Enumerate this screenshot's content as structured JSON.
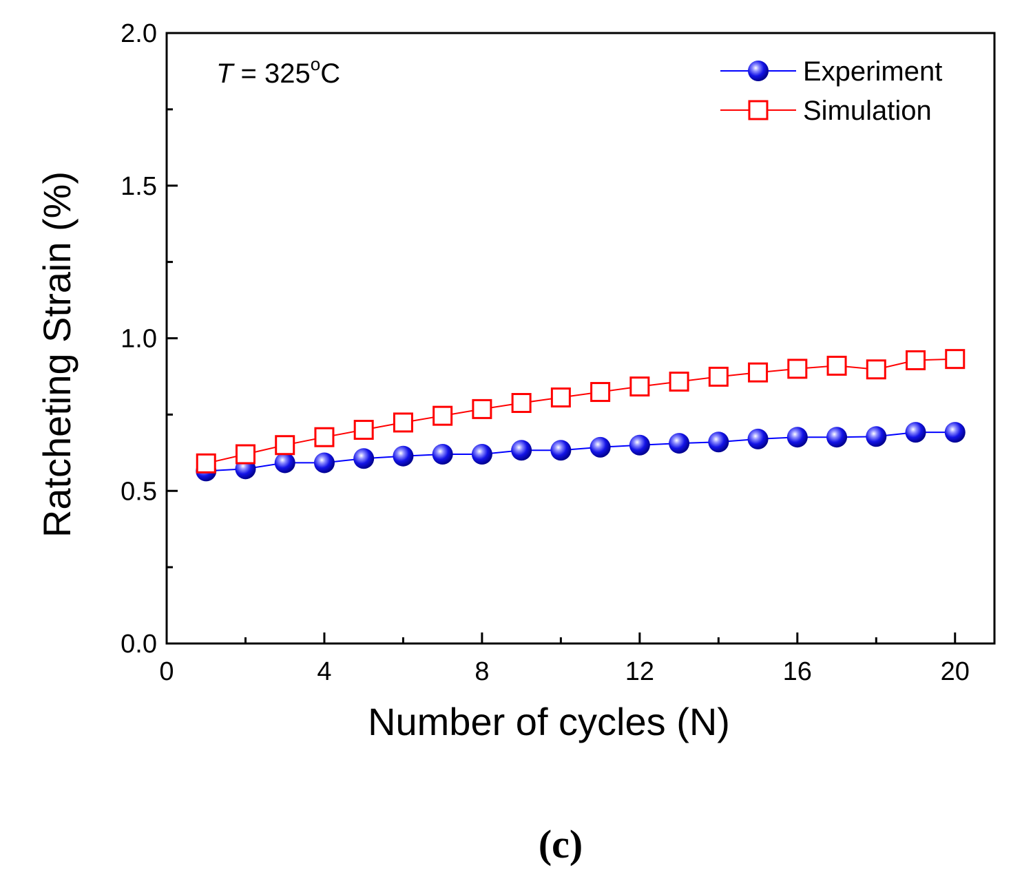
{
  "chart_data": {
    "type": "line",
    "title": "",
    "xlabel": "Number of cycles (N)",
    "ylabel": "Ratcheting Strain (%)",
    "xlim": [
      0,
      21
    ],
    "ylim": [
      0.0,
      2.0
    ],
    "x_ticks": [
      0,
      4,
      8,
      12,
      16,
      20
    ],
    "y_ticks": [
      "0.0",
      "0.5",
      "1.0",
      "1.5",
      "2.0"
    ],
    "grid": false,
    "legend_position": "top-right",
    "x": [
      1,
      2,
      3,
      4,
      5,
      6,
      7,
      8,
      9,
      10,
      11,
      12,
      13,
      14,
      15,
      16,
      17,
      18,
      19,
      20
    ],
    "series": [
      {
        "name": "Experiment",
        "color": "#0000ff",
        "marker": "sphere",
        "values": [
          0.565,
          0.572,
          0.592,
          0.592,
          0.606,
          0.614,
          0.62,
          0.62,
          0.633,
          0.633,
          0.643,
          0.65,
          0.656,
          0.66,
          0.67,
          0.676,
          0.676,
          0.678,
          0.692,
          0.692
        ]
      },
      {
        "name": "Simulation",
        "color": "#ff0000",
        "marker": "open-square",
        "values": [
          0.59,
          0.62,
          0.65,
          0.676,
          0.7,
          0.724,
          0.746,
          0.768,
          0.788,
          0.806,
          0.824,
          0.842,
          0.858,
          0.874,
          0.888,
          0.9,
          0.91,
          0.898,
          0.928,
          0.932
        ]
      }
    ],
    "annotation": {
      "var": "T",
      "rest": " = 325",
      "sup": "o",
      "unit": "C"
    },
    "panel_label": "(c)"
  }
}
